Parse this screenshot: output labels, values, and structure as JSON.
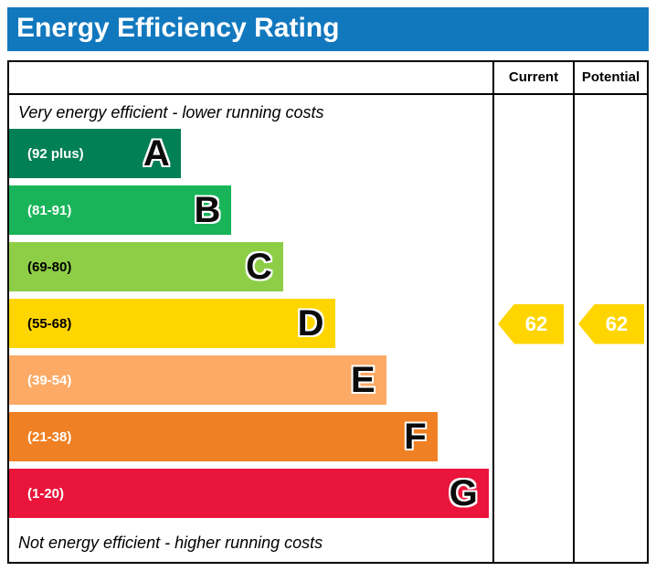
{
  "title": "Energy Efficiency Rating",
  "header": {
    "current": "Current",
    "potential": "Potential"
  },
  "captions": {
    "top": "Very energy efficient - lower running costs",
    "bottom": "Not energy efficient - higher running costs"
  },
  "colors": {
    "title_bar": "#1278be",
    "border": "#000000",
    "arrow": "#ffd500"
  },
  "chart_data": {
    "type": "bar",
    "title": "Energy Efficiency Rating",
    "bands": [
      {
        "letter": "A",
        "range": "(92 plus)",
        "min": 92,
        "max": 100,
        "color": "#008054",
        "range_text_color": "#ffffff",
        "width_pct": 35.5
      },
      {
        "letter": "B",
        "range": "(81-91)",
        "min": 81,
        "max": 91,
        "color": "#19b459",
        "range_text_color": "#ffffff",
        "width_pct": 46.0
      },
      {
        "letter": "C",
        "range": "(69-80)",
        "min": 69,
        "max": 80,
        "color": "#8dce46",
        "range_text_color": "#000000",
        "width_pct": 56.7
      },
      {
        "letter": "D",
        "range": "(55-68)",
        "min": 55,
        "max": 68,
        "color": "#ffd500",
        "range_text_color": "#000000",
        "width_pct": 67.4
      },
      {
        "letter": "E",
        "range": "(39-54)",
        "min": 39,
        "max": 54,
        "color": "#fcaa65",
        "range_text_color": "#ffffff",
        "width_pct": 78.0
      },
      {
        "letter": "F",
        "range": "(21-38)",
        "min": 21,
        "max": 38,
        "color": "#ef8023",
        "range_text_color": "#ffffff",
        "width_pct": 88.6
      },
      {
        "letter": "G",
        "range": "(1-20)",
        "min": 1,
        "max": 20,
        "color": "#e9153b",
        "range_text_color": "#ffffff",
        "width_pct": 99.2
      }
    ],
    "ratings": {
      "current": {
        "value": 62,
        "band": "D",
        "band_index": 3,
        "color": "#ffd500"
      },
      "potential": {
        "value": 62,
        "band": "D",
        "band_index": 3,
        "color": "#ffd500"
      }
    }
  }
}
